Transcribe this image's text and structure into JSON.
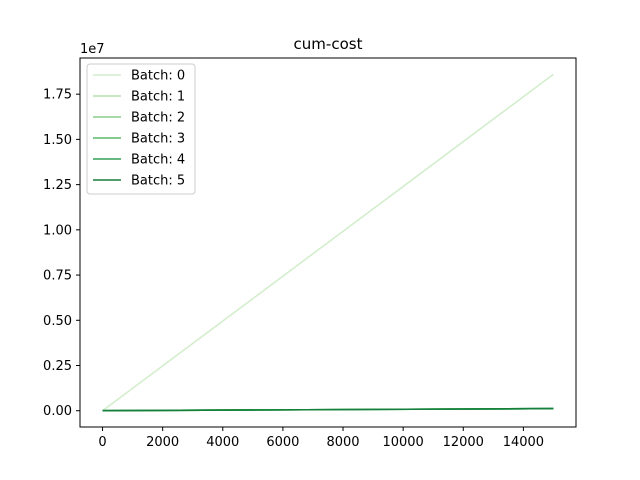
{
  "chart_data": {
    "type": "line",
    "title": "cum-cost",
    "xlabel": "",
    "ylabel": "",
    "y_offset_label": "1e7",
    "xlim": [
      -750,
      15750
    ],
    "ylim": [
      -0.09,
      1.95
    ],
    "x_ticks": [
      0,
      2000,
      4000,
      6000,
      8000,
      10000,
      12000,
      14000
    ],
    "x_tick_labels": [
      "0",
      "2000",
      "4000",
      "6000",
      "8000",
      "10000",
      "12000",
      "14000"
    ],
    "y_ticks": [
      0.0,
      0.25,
      0.5,
      0.75,
      1.0,
      1.25,
      1.5,
      1.75
    ],
    "y_tick_labels": [
      "0.00",
      "0.25",
      "0.50",
      "0.75",
      "1.00",
      "1.25",
      "1.50",
      "1.75"
    ],
    "grid": false,
    "legend_position": "top-left",
    "series": [
      {
        "name": "Batch: 0",
        "color": "#d3eecd",
        "x": [
          0,
          15000
        ],
        "y": [
          0.0,
          1.86
        ]
      },
      {
        "name": "Batch: 1",
        "color": "#b2e0ab",
        "x": [
          0,
          15000
        ],
        "y": [
          0.0,
          0.012
        ]
      },
      {
        "name": "Batch: 2",
        "color": "#8ace88",
        "x": [
          0,
          15000
        ],
        "y": [
          0.0,
          0.012
        ]
      },
      {
        "name": "Batch: 3",
        "color": "#5db96b",
        "x": [
          0,
          15000
        ],
        "y": [
          0.0,
          0.012
        ]
      },
      {
        "name": "Batch: 4",
        "color": "#33a057",
        "x": [
          0,
          15000
        ],
        "y": [
          0.0,
          0.012
        ]
      },
      {
        "name": "Batch: 5",
        "color": "#157f3b",
        "x": [
          0,
          15000
        ],
        "y": [
          0.0,
          0.012
        ]
      }
    ]
  }
}
